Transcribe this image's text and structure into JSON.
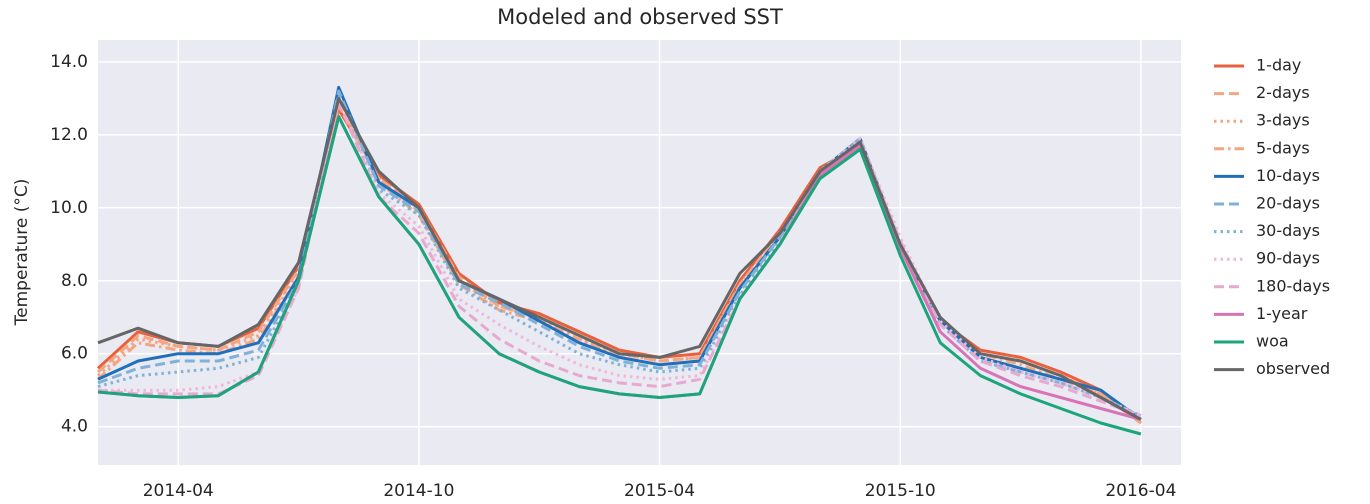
{
  "chart_data": {
    "type": "line",
    "title": "Modeled and observed SST",
    "ylabel": "Temperature (°C)",
    "x": [
      "2014-02",
      "2014-03",
      "2014-04",
      "2014-05",
      "2014-06",
      "2014-07",
      "2014-08",
      "2014-09",
      "2014-10",
      "2014-11",
      "2014-12",
      "2015-01",
      "2015-02",
      "2015-03",
      "2015-04",
      "2015-05",
      "2015-06",
      "2015-07",
      "2015-08",
      "2015-09",
      "2015-10",
      "2015-11",
      "2015-12",
      "2016-01",
      "2016-02",
      "2016-03",
      "2016-04"
    ],
    "xlim": [
      "2014-02",
      "2016-05"
    ],
    "xticks": [
      "2014-04",
      "2014-10",
      "2015-04",
      "2015-10",
      "2016-04"
    ],
    "ylim": [
      2.95,
      14.6
    ],
    "yticks": [
      {
        "value": 4,
        "label": "4.0"
      },
      {
        "value": 6,
        "label": "6.0"
      },
      {
        "value": 8,
        "label": "8.0"
      },
      {
        "value": 10,
        "label": "10.0"
      },
      {
        "value": 12,
        "label": "12.0"
      },
      {
        "value": 14,
        "label": "14.0"
      }
    ],
    "grid": true,
    "legend": "outside-right",
    "series": [
      {
        "name": "1-day",
        "color": "#e8603c",
        "dash": "solid",
        "values": [
          5.6,
          6.6,
          6.3,
          6.2,
          6.7,
          8.4,
          12.7,
          10.9,
          10.1,
          8.2,
          7.4,
          7.1,
          6.6,
          6.1,
          5.9,
          6.0,
          8.0,
          9.4,
          11.1,
          11.7,
          8.9,
          6.9,
          6.1,
          5.9,
          5.5,
          5.0,
          4.1
        ]
      },
      {
        "name": "2-days",
        "color": "#f4a582",
        "dash": "dashed",
        "values": [
          5.5,
          6.5,
          6.2,
          6.1,
          6.6,
          8.3,
          12.8,
          10.8,
          10.0,
          8.1,
          7.3,
          7.0,
          6.5,
          6.0,
          5.8,
          5.9,
          7.9,
          9.3,
          11.0,
          11.6,
          8.9,
          6.9,
          6.0,
          5.8,
          5.4,
          4.9,
          4.1
        ]
      },
      {
        "name": "3-days",
        "color": "#f4a582",
        "dash": "dotted",
        "values": [
          5.4,
          6.4,
          6.2,
          6.1,
          6.5,
          8.2,
          12.8,
          10.8,
          9.9,
          8.0,
          7.3,
          7.0,
          6.4,
          6.0,
          5.8,
          5.9,
          7.9,
          9.3,
          11.0,
          11.6,
          8.9,
          6.9,
          6.0,
          5.8,
          5.4,
          4.9,
          4.1
        ]
      },
      {
        "name": "5-days",
        "color": "#f4a582",
        "dash": "dashdot",
        "values": [
          5.3,
          6.3,
          6.1,
          6.0,
          6.4,
          8.1,
          12.9,
          10.7,
          9.8,
          7.9,
          7.2,
          6.9,
          6.4,
          5.9,
          5.7,
          5.8,
          7.8,
          9.2,
          11.0,
          11.7,
          8.9,
          6.9,
          6.0,
          5.7,
          5.3,
          4.9,
          4.1
        ]
      },
      {
        "name": "10-days",
        "color": "#1f6fba",
        "dash": "solid",
        "values": [
          5.3,
          5.8,
          6.0,
          6.0,
          6.3,
          8.1,
          13.3,
          10.7,
          10.0,
          8.0,
          7.5,
          6.9,
          6.3,
          5.9,
          5.7,
          5.8,
          7.8,
          9.2,
          11.0,
          11.9,
          9.0,
          6.9,
          5.9,
          5.6,
          5.3,
          5.0,
          4.2
        ]
      },
      {
        "name": "20-days",
        "color": "#7fb1d9",
        "dash": "dashed",
        "values": [
          5.2,
          5.6,
          5.8,
          5.8,
          6.1,
          8.0,
          13.2,
          10.6,
          9.9,
          7.9,
          7.4,
          6.8,
          6.2,
          5.8,
          5.6,
          5.7,
          7.7,
          9.2,
          11.0,
          11.9,
          9.0,
          6.8,
          5.8,
          5.5,
          5.2,
          4.8,
          4.3
        ]
      },
      {
        "name": "30-days",
        "color": "#7fb1d9",
        "dash": "dotted",
        "values": [
          5.1,
          5.4,
          5.5,
          5.6,
          5.9,
          7.9,
          13.1,
          10.5,
          9.8,
          7.8,
          7.2,
          6.6,
          6.0,
          5.7,
          5.5,
          5.6,
          7.6,
          9.1,
          11.0,
          11.9,
          9.0,
          6.8,
          5.8,
          5.5,
          5.2,
          4.8,
          4.3
        ]
      },
      {
        "name": "90-days",
        "color": "#f1b6da",
        "dash": "dotted",
        "values": [
          5.0,
          5.0,
          5.0,
          5.1,
          5.5,
          7.8,
          13.0,
          10.4,
          9.5,
          7.5,
          6.8,
          6.2,
          5.7,
          5.4,
          5.3,
          5.4,
          7.5,
          9.0,
          11.0,
          11.9,
          9.2,
          6.9,
          5.9,
          5.5,
          5.2,
          4.8,
          4.3
        ]
      },
      {
        "name": "180-days",
        "color": "#e7a9d0",
        "dash": "dashed",
        "values": [
          5.0,
          4.9,
          4.9,
          4.9,
          5.4,
          7.8,
          12.9,
          10.3,
          9.3,
          7.3,
          6.4,
          5.8,
          5.4,
          5.2,
          5.1,
          5.3,
          7.5,
          9.0,
          11.0,
          11.8,
          9.1,
          6.8,
          5.8,
          5.4,
          5.1,
          4.7,
          4.3
        ]
      },
      {
        "name": "1-year",
        "color": "#d973b8",
        "dash": "solid",
        "values": [
          4.95,
          4.85,
          4.8,
          4.85,
          5.5,
          8.0,
          12.5,
          10.3,
          9.0,
          7.0,
          6.0,
          5.5,
          5.1,
          4.9,
          4.8,
          4.9,
          7.5,
          9.0,
          10.9,
          11.7,
          8.9,
          6.6,
          5.6,
          5.1,
          4.8,
          4.5,
          4.2
        ]
      },
      {
        "name": "woa",
        "color": "#1aa57a",
        "dash": "solid",
        "values": [
          4.95,
          4.85,
          4.8,
          4.85,
          5.5,
          8.0,
          12.5,
          10.3,
          9.0,
          7.0,
          6.0,
          5.5,
          5.1,
          4.9,
          4.8,
          4.9,
          7.5,
          9.0,
          10.8,
          11.6,
          8.7,
          6.3,
          5.4,
          4.9,
          4.5,
          4.1,
          3.8
        ]
      },
      {
        "name": "observed",
        "color": "#666666",
        "dash": "solid",
        "values": [
          6.3,
          6.7,
          6.3,
          6.2,
          6.8,
          8.5,
          13.0,
          11.0,
          10.0,
          8.0,
          7.5,
          7.0,
          6.5,
          6.0,
          5.9,
          6.2,
          8.2,
          9.3,
          11.0,
          11.8,
          9.0,
          7.0,
          6.0,
          5.8,
          5.4,
          4.8,
          4.2
        ]
      }
    ]
  }
}
